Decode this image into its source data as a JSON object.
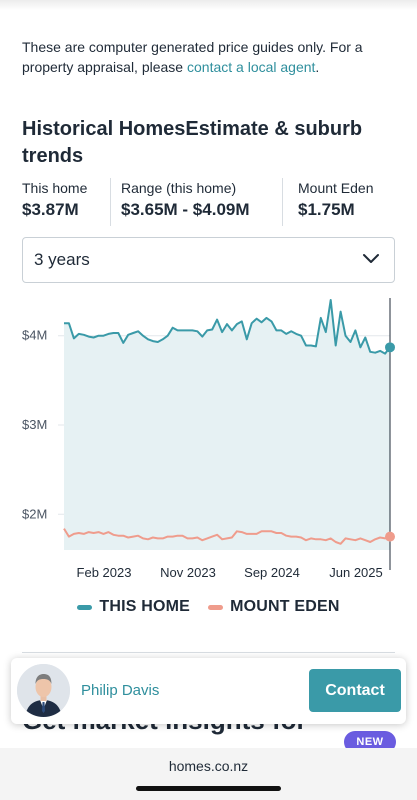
{
  "disclaimer": {
    "text_before": "These are computer generated price guides only. For a property appraisal, please ",
    "link": "contact a local agent",
    "text_after": "."
  },
  "section_title": "Historical HomesEstimate & suburb trends",
  "stats": [
    {
      "label": "This home",
      "value": "$3.87M"
    },
    {
      "label": "Range (this home)",
      "value": "$3.65M - $4.09M"
    },
    {
      "label": "Mount Eden",
      "value": "$1.75M"
    }
  ],
  "period_select": {
    "value": "3 years",
    "icon": "chevron-down-icon"
  },
  "chart_data": {
    "type": "line",
    "y_ticks": [
      "$4M",
      "$3M",
      "$2M"
    ],
    "x_ticks": [
      "Feb 2023",
      "Nov 2023",
      "Sep 2024",
      "Jun 2025"
    ],
    "ylim": [
      1.6,
      4.4
    ],
    "grid": true,
    "legend_position": "bottom",
    "series": [
      {
        "name": "THIS HOME",
        "color": "#3a9aa8",
        "fill": "#e6f1f3",
        "values": [
          4.14,
          4.14,
          3.97,
          4.02,
          4.01,
          3.99,
          3.98,
          4.0,
          4.0,
          4.02,
          4.03,
          4.03,
          3.92,
          4.01,
          4.03,
          4.05,
          4.0,
          3.96,
          3.94,
          3.93,
          3.96,
          4.0,
          4.09,
          4.06,
          4.06,
          4.06,
          4.06,
          4.05,
          3.99,
          4.06,
          4.07,
          4.18,
          4.04,
          4.13,
          4.06,
          4.13,
          4.16,
          3.96,
          4.14,
          4.19,
          4.15,
          4.2,
          4.16,
          4.06,
          4.06,
          4.02,
          4.05,
          4.02,
          4.0,
          3.89,
          3.89,
          3.88,
          4.2,
          4.04,
          4.4,
          3.89,
          4.27,
          4.0,
          3.93,
          4.06,
          3.87,
          3.98,
          3.82,
          3.81,
          3.83,
          3.8,
          3.87
        ]
      },
      {
        "name": "MOUNT EDEN",
        "color": "#ef9c8c",
        "values": [
          1.84,
          1.75,
          1.78,
          1.79,
          1.78,
          1.8,
          1.79,
          1.8,
          1.78,
          1.8,
          1.77,
          1.76,
          1.76,
          1.74,
          1.75,
          1.76,
          1.73,
          1.72,
          1.74,
          1.73,
          1.73,
          1.75,
          1.75,
          1.76,
          1.76,
          1.73,
          1.73,
          1.74,
          1.71,
          1.73,
          1.75,
          1.77,
          1.72,
          1.73,
          1.74,
          1.81,
          1.8,
          1.78,
          1.78,
          1.78,
          1.81,
          1.81,
          1.81,
          1.79,
          1.79,
          1.76,
          1.75,
          1.75,
          1.74,
          1.71,
          1.73,
          1.72,
          1.72,
          1.71,
          1.73,
          1.69,
          1.67,
          1.73,
          1.72,
          1.71,
          1.73,
          1.71,
          1.69,
          1.72,
          1.74,
          1.73,
          1.75
        ]
      }
    ]
  },
  "legend": [
    {
      "label": "THIS HOME",
      "color": "#3a9aa8"
    },
    {
      "label": "MOUNT EDEN",
      "color": "#ef9c8c"
    }
  ],
  "next_heading": "Get market insights for",
  "new_badge": "NEW",
  "agent": {
    "name": "Philip Davis",
    "contact_label": "Contact"
  },
  "browser": {
    "url": "homes.co.nz"
  }
}
